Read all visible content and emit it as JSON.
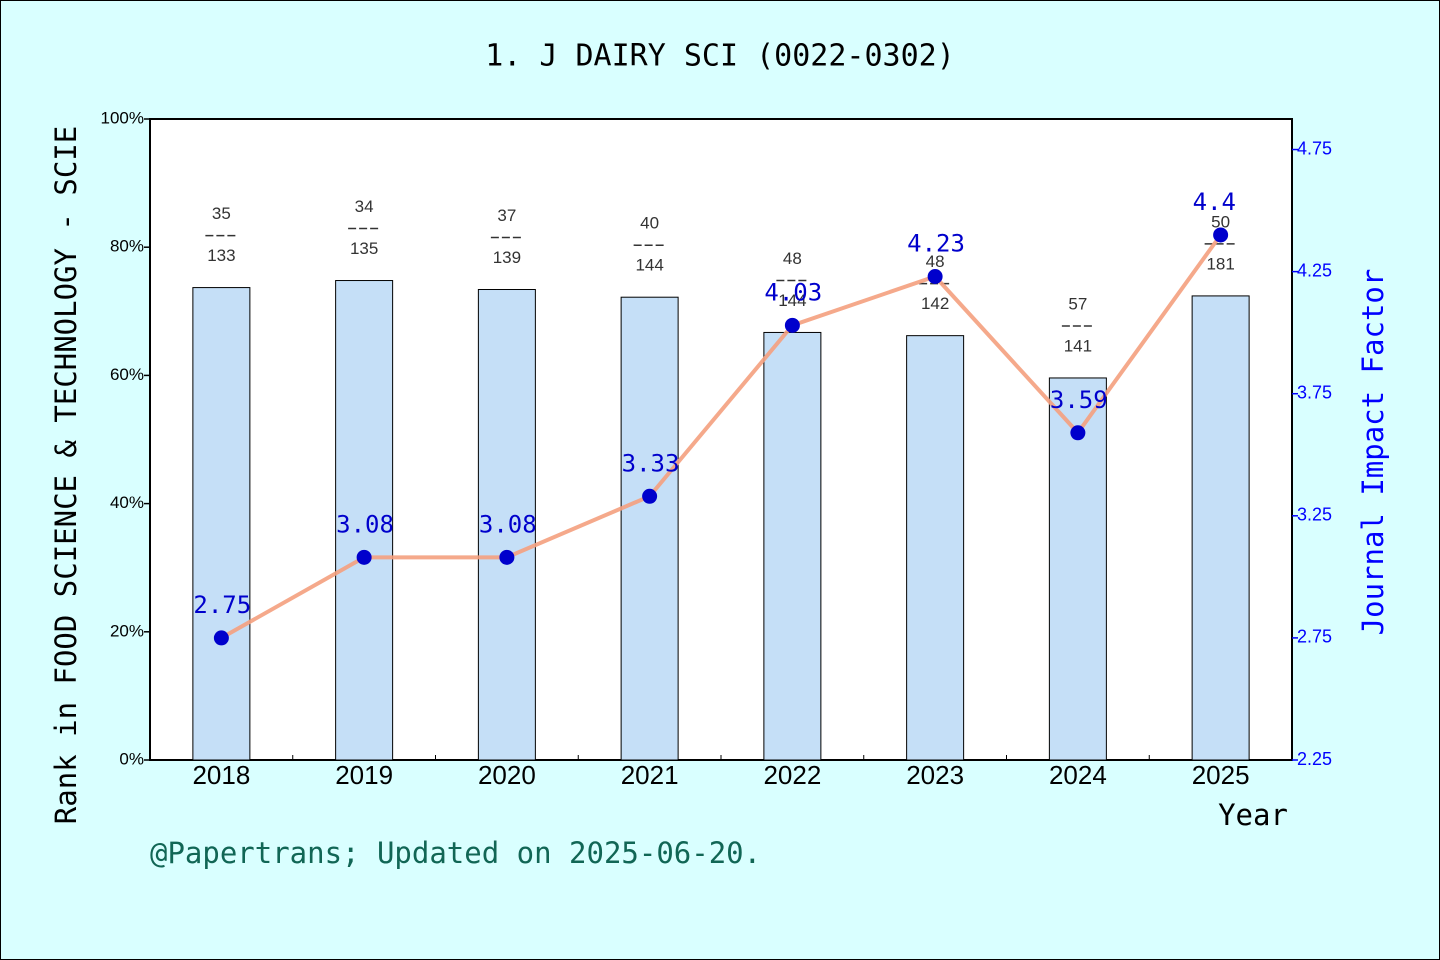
{
  "chart_data": {
    "type": "bar",
    "title": "1. J DAIRY SCI (0022-0302)",
    "y_label": "Rank in FOOD SCIENCE & TECHNOLOGY - SCIE",
    "y2_label": "Journal Impact Factor",
    "x_label": "Year",
    "footer": "@Papertrans; Updated on 2025-06-20.",
    "categories": [
      "2018",
      "2019",
      "2020",
      "2021",
      "2022",
      "2023",
      "2024",
      "2025"
    ],
    "series": [
      {
        "type": "bar",
        "color": "#c5dff7",
        "values": [
          73.7,
          74.8,
          73.4,
          72.2,
          66.7,
          66.2,
          59.6,
          72.4
        ],
        "ranks": [
          35,
          34,
          37,
          40,
          48,
          48,
          57,
          50
        ],
        "totals": [
          133,
          135,
          139,
          144,
          144,
          142,
          141,
          181
        ]
      },
      {
        "type": "line",
        "axis": "y2",
        "color": "#f4a07e",
        "marker_color": "#0000cc",
        "values": [
          2.75,
          3.08,
          3.08,
          3.33,
          4.03,
          4.23,
          3.59,
          4.4
        ]
      }
    ],
    "ylim": [
      0,
      100
    ],
    "yticks": [
      {
        "value": 0,
        "label": "0%"
      },
      {
        "value": 20,
        "label": "20%"
      },
      {
        "value": 40,
        "label": "40%"
      },
      {
        "value": 60,
        "label": "60%"
      },
      {
        "value": 80,
        "label": "80%"
      },
      {
        "value": 100,
        "label": "100%"
      }
    ],
    "y2lim": [
      2.25,
      4.875
    ],
    "y2ticks": [
      2.25,
      2.75,
      3.25,
      3.75,
      4.25,
      4.75
    ]
  }
}
